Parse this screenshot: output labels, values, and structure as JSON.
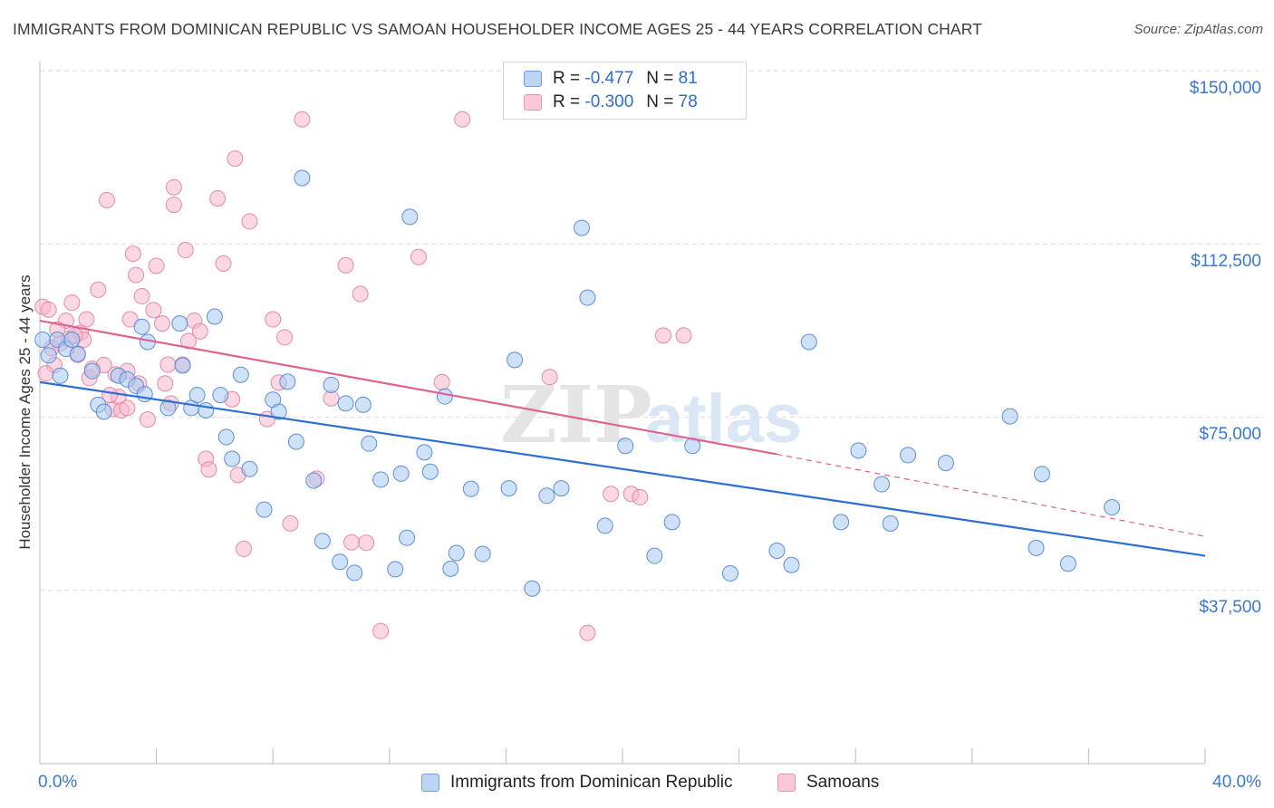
{
  "title": "IMMIGRANTS FROM DOMINICAN REPUBLIC VS SAMOAN HOUSEHOLDER INCOME AGES 25 - 44 YEARS CORRELATION CHART",
  "source": "Source: ZipAtlas.com",
  "watermark": {
    "zip": "ZIP",
    "atlas": "atlas"
  },
  "legend": {
    "rows": [
      {
        "r_label": "R =",
        "r_value": "-0.477",
        "n_label": "N =",
        "n_value": "81"
      },
      {
        "r_label": "R =",
        "r_value": "-0.300",
        "n_label": "N =",
        "n_value": "78"
      }
    ]
  },
  "chart_data": {
    "type": "scatter",
    "title": "IMMIGRANTS FROM DOMINICAN REPUBLIC VS SAMOAN HOUSEHOLDER INCOME AGES 25 - 44 YEARS CORRELATION CHART",
    "xlabel": "",
    "ylabel": "Householder Income Ages 25 - 44 years",
    "xlim": [
      0,
      40
    ],
    "ylim": [
      0,
      157500
    ],
    "x_tick_labels": [
      "0.0%",
      "40.0%"
    ],
    "y_ticks": [
      37500,
      75000,
      112500,
      150000
    ],
    "y_tick_labels": [
      "$37,500",
      "$75,000",
      "$112,500",
      "$150,000"
    ],
    "grid": true,
    "legend_position": "top-center",
    "colors": {
      "blue_fill": "#a8c8f0",
      "blue_stroke": "#5b8fd6",
      "blue_line": "#2b6fd0",
      "pink_fill": "#f6b6cb",
      "pink_stroke": "#e38aa8",
      "pink_line": "#e0628f"
    },
    "series": [
      {
        "name": "Immigrants from Dominican Republic",
        "color": "#5b8fd6",
        "r": -0.477,
        "n": 81,
        "trend": {
          "x": [
            0,
            40
          ],
          "y": [
            82600,
            45000
          ],
          "dashed_from": null
        },
        "points": [
          [
            0.1,
            91800
          ],
          [
            0.6,
            91800
          ],
          [
            0.9,
            89800
          ],
          [
            1.1,
            91800
          ],
          [
            0.7,
            84000
          ],
          [
            1.3,
            88700
          ],
          [
            1.8,
            85000
          ],
          [
            2.0,
            77700
          ],
          [
            2.2,
            76200
          ],
          [
            2.7,
            84000
          ],
          [
            3.0,
            83200
          ],
          [
            3.3,
            81800
          ],
          [
            3.6,
            80000
          ],
          [
            3.5,
            94600
          ],
          [
            3.7,
            91300
          ],
          [
            4.4,
            77000
          ],
          [
            4.8,
            95300
          ],
          [
            4.9,
            86200
          ],
          [
            5.2,
            77000
          ],
          [
            5.4,
            79800
          ],
          [
            5.7,
            76500
          ],
          [
            6.0,
            96800
          ],
          [
            6.2,
            79800
          ],
          [
            6.4,
            70700
          ],
          [
            6.6,
            66000
          ],
          [
            6.9,
            84200
          ],
          [
            7.2,
            63800
          ],
          [
            7.7,
            55000
          ],
          [
            8.0,
            78800
          ],
          [
            8.2,
            76200
          ],
          [
            8.5,
            82700
          ],
          [
            8.8,
            69700
          ],
          [
            9.0,
            126800
          ],
          [
            9.4,
            61300
          ],
          [
            9.7,
            48200
          ],
          [
            10.0,
            82000
          ],
          [
            10.3,
            43700
          ],
          [
            10.5,
            78000
          ],
          [
            10.8,
            41300
          ],
          [
            11.1,
            77700
          ],
          [
            11.3,
            69300
          ],
          [
            11.7,
            61500
          ],
          [
            12.2,
            42100
          ],
          [
            12.4,
            62800
          ],
          [
            12.6,
            48900
          ],
          [
            12.7,
            118400
          ],
          [
            13.2,
            67400
          ],
          [
            13.4,
            63200
          ],
          [
            13.9,
            79500
          ],
          [
            14.1,
            42200
          ],
          [
            14.3,
            45600
          ],
          [
            14.8,
            59500
          ],
          [
            15.2,
            45400
          ],
          [
            16.1,
            59600
          ],
          [
            16.9,
            37900
          ],
          [
            16.3,
            87400
          ],
          [
            17.4,
            58000
          ],
          [
            17.9,
            59600
          ],
          [
            18.6,
            116000
          ],
          [
            18.8,
            100900
          ],
          [
            19.4,
            51500
          ],
          [
            20.1,
            68800
          ],
          [
            21.1,
            45000
          ],
          [
            21.7,
            52300
          ],
          [
            22.4,
            68800
          ],
          [
            23.7,
            41200
          ],
          [
            25.3,
            46100
          ],
          [
            25.8,
            43000
          ],
          [
            26.4,
            91300
          ],
          [
            27.5,
            52300
          ],
          [
            28.1,
            67800
          ],
          [
            28.9,
            60500
          ],
          [
            29.2,
            52000
          ],
          [
            29.8,
            66800
          ],
          [
            31.1,
            65100
          ],
          [
            33.3,
            75200
          ],
          [
            34.2,
            46700
          ],
          [
            34.4,
            62700
          ],
          [
            35.3,
            43300
          ],
          [
            36.8,
            55500
          ],
          [
            0.3,
            88400
          ]
        ]
      },
      {
        "name": "Samoans",
        "color": "#e38aa8",
        "r": -0.3,
        "n": 78,
        "trend": {
          "x": [
            0,
            25.3,
            40
          ],
          "y": [
            95900,
            67000,
            49200
          ],
          "dashed_from": 25.3
        },
        "points": [
          [
            0.1,
            98900
          ],
          [
            0.3,
            98300
          ],
          [
            0.5,
            86300
          ],
          [
            0.7,
            91000
          ],
          [
            0.9,
            95900
          ],
          [
            1.0,
            92000
          ],
          [
            1.1,
            99800
          ],
          [
            1.3,
            88500
          ],
          [
            1.4,
            93300
          ],
          [
            1.5,
            91800
          ],
          [
            1.6,
            96200
          ],
          [
            1.8,
            85500
          ],
          [
            2.0,
            102600
          ],
          [
            2.2,
            86300
          ],
          [
            2.3,
            122000
          ],
          [
            2.5,
            76800
          ],
          [
            2.7,
            79400
          ],
          [
            2.8,
            76500
          ],
          [
            3.0,
            85000
          ],
          [
            3.1,
            96200
          ],
          [
            3.2,
            110400
          ],
          [
            3.3,
            105800
          ],
          [
            3.5,
            101200
          ],
          [
            3.7,
            74500
          ],
          [
            3.9,
            98200
          ],
          [
            4.0,
            107800
          ],
          [
            4.2,
            95300
          ],
          [
            4.3,
            82300
          ],
          [
            4.4,
            86400
          ],
          [
            4.6,
            121000
          ],
          [
            4.6,
            124800
          ],
          [
            4.9,
            86400
          ],
          [
            5.0,
            111200
          ],
          [
            5.3,
            95900
          ],
          [
            5.5,
            93600
          ],
          [
            5.7,
            66000
          ],
          [
            5.8,
            63700
          ],
          [
            6.1,
            122400
          ],
          [
            6.3,
            108300
          ],
          [
            6.6,
            78900
          ],
          [
            6.7,
            131000
          ],
          [
            7.0,
            46500
          ],
          [
            7.2,
            117400
          ],
          [
            7.8,
            74600
          ],
          [
            8.0,
            96200
          ],
          [
            8.2,
            82500
          ],
          [
            8.4,
            92300
          ],
          [
            8.6,
            52000
          ],
          [
            9.0,
            139500
          ],
          [
            9.5,
            61700
          ],
          [
            10.0,
            79100
          ],
          [
            10.5,
            107900
          ],
          [
            10.7,
            47900
          ],
          [
            11.0,
            101700
          ],
          [
            11.2,
            47800
          ],
          [
            11.7,
            28700
          ],
          [
            13.0,
            109700
          ],
          [
            13.8,
            82600
          ],
          [
            14.5,
            139500
          ],
          [
            17.5,
            83700
          ],
          [
            18.8,
            28300
          ],
          [
            19.6,
            58400
          ],
          [
            20.3,
            58400
          ],
          [
            20.6,
            57700
          ],
          [
            21.4,
            92700
          ],
          [
            22.1,
            92700
          ],
          [
            0.4,
            90000
          ],
          [
            1.2,
            92700
          ],
          [
            2.4,
            79800
          ],
          [
            3.0,
            77000
          ],
          [
            6.8,
            62500
          ],
          [
            0.2,
            84500
          ],
          [
            4.5,
            78000
          ],
          [
            1.7,
            83500
          ],
          [
            2.6,
            84300
          ],
          [
            0.6,
            94000
          ],
          [
            5.1,
            91500
          ],
          [
            3.4,
            82300
          ]
        ]
      }
    ]
  },
  "bottom_legend": {
    "items": [
      {
        "label": "Immigrants from Dominican Republic"
      },
      {
        "label": "Samoans"
      }
    ]
  }
}
